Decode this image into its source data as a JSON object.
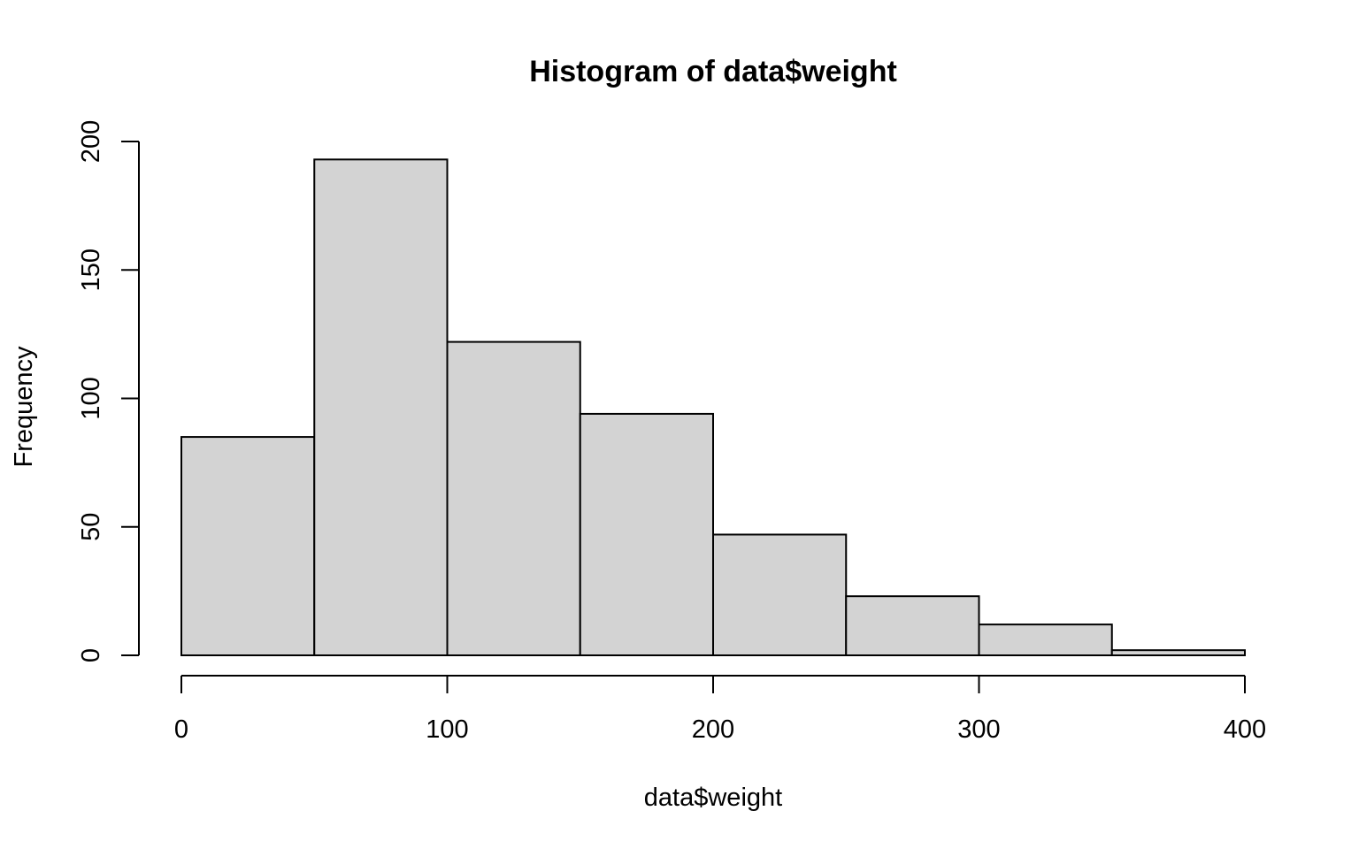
{
  "chart_data": {
    "type": "bar",
    "title": "Histogram of data$weight",
    "xlabel": "data$weight",
    "ylabel": "Frequency",
    "bins": [
      {
        "from": 0,
        "to": 50,
        "count": 85
      },
      {
        "from": 50,
        "to": 100,
        "count": 193
      },
      {
        "from": 100,
        "to": 150,
        "count": 122
      },
      {
        "from": 150,
        "to": 200,
        "count": 94
      },
      {
        "from": 200,
        "to": 250,
        "count": 47
      },
      {
        "from": 250,
        "to": 300,
        "count": 23
      },
      {
        "from": 300,
        "to": 350,
        "count": 12
      },
      {
        "from": 350,
        "to": 400,
        "count": 2
      }
    ],
    "xlim": [
      0,
      400
    ],
    "ylim": [
      0,
      200
    ],
    "xticks": [
      0,
      100,
      200,
      300,
      400
    ],
    "yticks": [
      0,
      50,
      100,
      150,
      200
    ],
    "grid": false,
    "bar_fill": "#d3d3d3",
    "bar_stroke": "#000000"
  }
}
